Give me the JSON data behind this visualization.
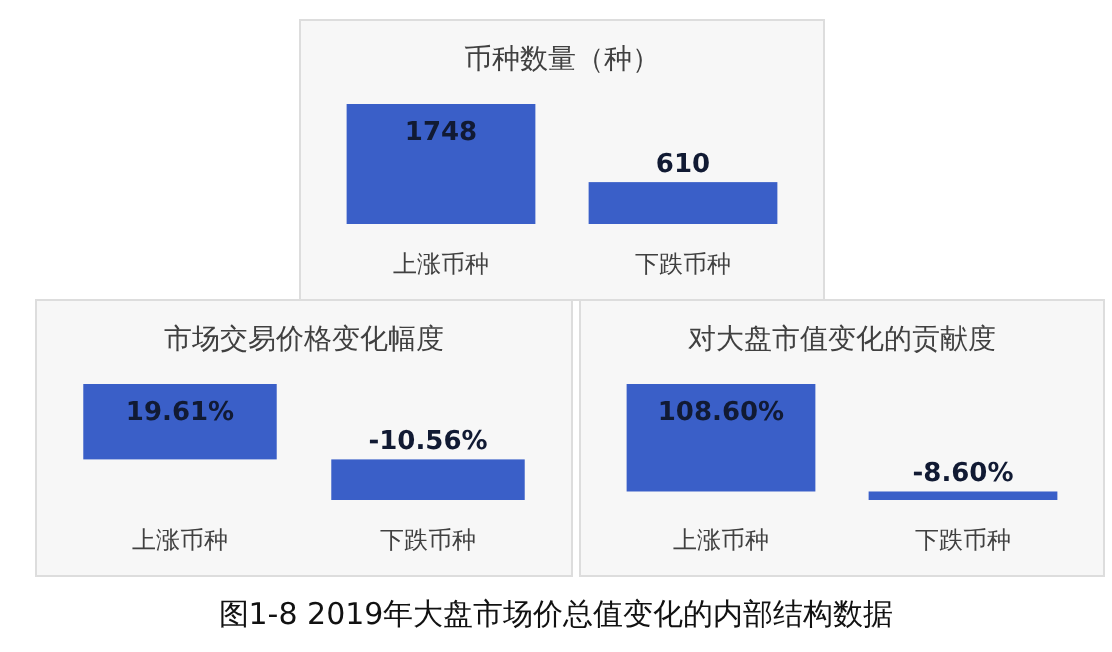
{
  "chart_data": [
    {
      "type": "bar",
      "title": "币种数量（种）",
      "categories": [
        "上涨币种",
        "下跌币种"
      ],
      "values": [
        1748,
        610
      ],
      "color": "#3a5fc8",
      "data_labels": true
    },
    {
      "type": "bar",
      "title": "市场交易价格变化幅度",
      "categories": [
        "上涨币种",
        "下跌币种"
      ],
      "values": [
        19.61,
        -10.56
      ],
      "value_labels": [
        "19.61%",
        "-10.56%"
      ],
      "color": "#3a5fc8"
    },
    {
      "type": "bar",
      "title": "对大盘市值变化的贡献度",
      "categories": [
        "上涨币种",
        "下跌币种"
      ],
      "values": [
        108.6,
        -8.6
      ],
      "value_labels": [
        "108.60%",
        "-8.60%"
      ],
      "color": "#3a5fc8"
    },
    {
      "type": "other",
      "annotations": [
        "图1-8 2019年大盘市场价总值变化的内部结构数据"
      ]
    }
  ]
}
